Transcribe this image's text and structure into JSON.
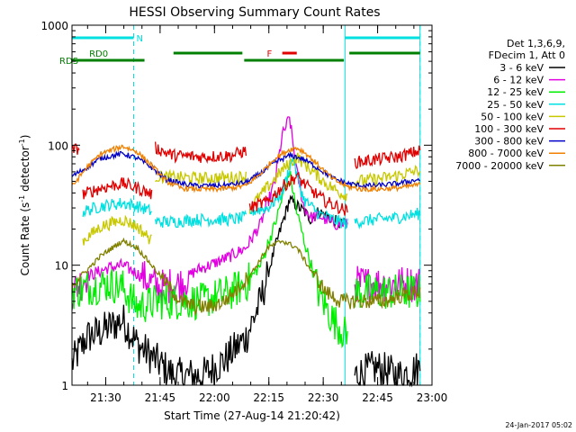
{
  "chart_data": {
    "type": "line",
    "title": "HESSI Observing Summary Count Rates",
    "xlabel": "Start Time (27-Aug-14 21:20:42)",
    "ylabel_prefix": "Count Rate (s",
    "ylabel_sup": "-1",
    "ylabel_mid": " detector",
    "ylabel_suffix": ")",
    "ylim": [
      1,
      1000
    ],
    "yscale": "log",
    "y_ticks": [
      1,
      10,
      100,
      1000
    ],
    "y_tick_labels": [
      "1",
      "10",
      "100",
      "1000"
    ],
    "xlim_minutes": [
      0,
      99.3
    ],
    "x_ticks_minutes": [
      9.3,
      24.3,
      39.3,
      54.3,
      69.3,
      84.3,
      99.3
    ],
    "x_tick_labels": [
      "21:30",
      "21:45",
      "22:00",
      "22:15",
      "22:30",
      "22:45",
      "23:00"
    ],
    "legend_header": [
      "Det 1,3,6,9,",
      "FDecim 1, Att 0"
    ],
    "series": [
      {
        "name": "3 - 6 keV",
        "color": "#000000",
        "segments": [
          {
            "t": [
              0,
              4,
              8,
              14,
              18,
              28,
              36,
              42,
              48,
              52,
              56,
              60,
              64,
              66,
              68,
              72,
              74,
              76
            ],
            "v": [
              1.5,
              2.5,
              2.8,
              3.5,
              2.2,
              1.2,
              1.2,
              1.6,
              2.5,
              5,
              14,
              35,
              28,
              24,
              28,
              24,
              22,
              22
            ]
          },
          {
            "t": [
              78,
              84,
              90,
              96
            ],
            "v": [
              1.2,
              1.4,
              1.2,
              1.4
            ]
          }
        ]
      },
      {
        "name": "6 - 12 keV",
        "color": "#e000e0",
        "segments": [
          {
            "t": [
              0,
              4,
              10,
              14,
              18,
              24,
              30,
              34,
              38,
              44,
              48,
              52,
              56,
              58,
              60,
              62,
              64,
              66,
              68,
              72,
              74,
              76
            ],
            "v": [
              6,
              8,
              9.5,
              10,
              8.5,
              6.5,
              7,
              9,
              10,
              12,
              14,
              22,
              50,
              120,
              170,
              60,
              30,
              25,
              26,
              22,
              22,
              22
            ]
          },
          {
            "t": [
              78,
              84,
              90,
              96
            ],
            "v": [
              7,
              7,
              7,
              7
            ]
          }
        ]
      },
      {
        "name": "12 - 25 keV",
        "color": "#00ee00",
        "segments": [
          {
            "t": [
              0,
              4,
              10,
              14,
              18,
              24,
              30,
              36,
              40,
              44,
              48,
              52,
              56,
              60,
              62,
              64,
              66,
              68,
              70,
              72,
              74,
              76
            ],
            "v": [
              6,
              6.5,
              7,
              6.5,
              4.5,
              5,
              5,
              5,
              5.5,
              6,
              7,
              10,
              22,
              60,
              28,
              16,
              10,
              6,
              4.5,
              3.5,
              3,
              2.5
            ]
          },
          {
            "t": [
              78,
              84,
              90,
              96
            ],
            "v": [
              6,
              6,
              6,
              6
            ]
          }
        ]
      },
      {
        "name": "25 - 50 keV",
        "color": "#00e0e0",
        "segments": [
          {
            "t": [
              3,
              8,
              14,
              18,
              22
            ],
            "v": [
              28,
              31,
              33,
              31,
              28
            ]
          },
          {
            "t": [
              23,
              28,
              34,
              38,
              44,
              48
            ],
            "v": [
              23,
              23,
              24,
              24,
              24,
              25
            ]
          },
          {
            "t": [
              49,
              54,
              58,
              60,
              61,
              62,
              64,
              68,
              72,
              76
            ],
            "v": [
              28,
              30,
              40,
              65,
              80,
              55,
              35,
              27,
              24,
              22
            ]
          },
          {
            "t": [
              78,
              84,
              90,
              96
            ],
            "v": [
              23,
              24,
              25,
              27
            ]
          }
        ]
      },
      {
        "name": "50 - 100 keV",
        "color": "#c8c800",
        "segments": [
          {
            "t": [
              3,
              8,
              14,
              18,
              22
            ],
            "v": [
              16,
              21,
              24,
              21,
              16
            ]
          },
          {
            "t": [
              23,
              28,
              36,
              44,
              48
            ],
            "v": [
              55,
              54,
              53,
              54,
              55
            ]
          },
          {
            "t": [
              49,
              54,
              58,
              62,
              66,
              70,
              74,
              76
            ],
            "v": [
              30,
              45,
              62,
              80,
              62,
              48,
              40,
              38
            ]
          },
          {
            "t": [
              78,
              84,
              90,
              96
            ],
            "v": [
              50,
              52,
              56,
              62
            ]
          }
        ]
      },
      {
        "name": "100 - 300 keV",
        "color": "#e00000",
        "segments": [
          {
            "t": [
              0,
              2
            ],
            "v": [
              90,
              95
            ]
          },
          {
            "t": [
              3,
              8,
              14,
              18,
              22
            ],
            "v": [
              39,
              44,
              48,
              44,
              39
            ]
          },
          {
            "t": [
              23,
              28,
              36,
              44,
              48
            ],
            "v": [
              95,
              82,
              80,
              82,
              90
            ]
          },
          {
            "t": [
              49,
              54,
              58,
              62,
              66,
              70,
              74,
              76
            ],
            "v": [
              30,
              34,
              45,
              55,
              42,
              34,
              30,
              28
            ]
          },
          {
            "t": [
              78,
              84,
              90,
              96
            ],
            "v": [
              72,
              76,
              80,
              90
            ]
          }
        ]
      },
      {
        "name": "300 - 800 keV",
        "color": "#0000c8",
        "segments": [
          {
            "t": [
              0,
              4,
              8,
              14,
              18,
              22,
              26,
              30,
              34,
              40,
              44,
              48,
              52,
              56,
              60,
              62,
              64,
              68,
              72,
              76,
              80,
              84,
              90,
              96
            ],
            "v": [
              55,
              65,
              78,
              85,
              78,
              65,
              52,
              48,
              46,
              46,
              47,
              49,
              58,
              72,
              82,
              80,
              76,
              64,
              53,
              48,
              46,
              46,
              48,
              52
            ]
          }
        ]
      },
      {
        "name": "800 - 7000 keV",
        "color": "#f08000",
        "segments": [
          {
            "t": [
              0,
              4,
              8,
              14,
              18,
              22,
              26,
              30,
              34,
              40,
              44,
              48,
              52,
              56,
              60,
              62,
              64,
              68,
              72,
              76,
              80,
              84,
              90,
              96
            ],
            "v": [
              45,
              65,
              85,
              98,
              88,
              68,
              50,
              44,
              43,
              43,
              44,
              46,
              58,
              78,
              92,
              95,
              88,
              68,
              52,
              45,
              43,
              43,
              44,
              47
            ]
          }
        ]
      },
      {
        "name": "7000 - 20000 keV",
        "color": "#808000",
        "segments": [
          {
            "t": [
              0,
              4,
              8,
              14,
              18,
              22,
              26,
              30,
              34,
              38,
              42,
              46,
              50,
              54,
              58,
              62,
              66,
              70,
              74,
              78,
              82,
              86,
              90,
              96
            ],
            "v": [
              7,
              9,
              12,
              16,
              14,
              10,
              7,
              5,
              4.5,
              4.5,
              5,
              6.5,
              9,
              14,
              16,
              14,
              9,
              6,
              5,
              5,
              5,
              5,
              5.5,
              6
            ]
          }
        ]
      }
    ],
    "eclipse_markers_minutes": [
      0,
      75.3,
      96
    ],
    "saa_markers_minutes": [
      17,
      96
    ],
    "flags": [
      {
        "label": "N",
        "color": "#00e0e0",
        "label_at_minutes": 17,
        "segments": [
          [
            0,
            17
          ],
          [
            75.3,
            96
          ]
        ],
        "level": "top"
      },
      {
        "label": "F",
        "color": "#e00000",
        "label_at_minutes": 53,
        "segments": [
          [
            58,
            62
          ]
        ],
        "level": "upper"
      },
      {
        "label": "RD0",
        "color": "#008000",
        "label_at_minutes": 4,
        "segments": [
          [
            28,
            47
          ],
          [
            76.5,
            96
          ]
        ],
        "level": "upper"
      },
      {
        "label": "RDS",
        "color": "#008000",
        "label_at_minutes": 0,
        "segments": [
          [
            0,
            20
          ],
          [
            47.5,
            75
          ]
        ],
        "level": "lower"
      }
    ],
    "grid": false,
    "legend_position": "right"
  },
  "footer_date": "24-Jan-2017 05:02"
}
